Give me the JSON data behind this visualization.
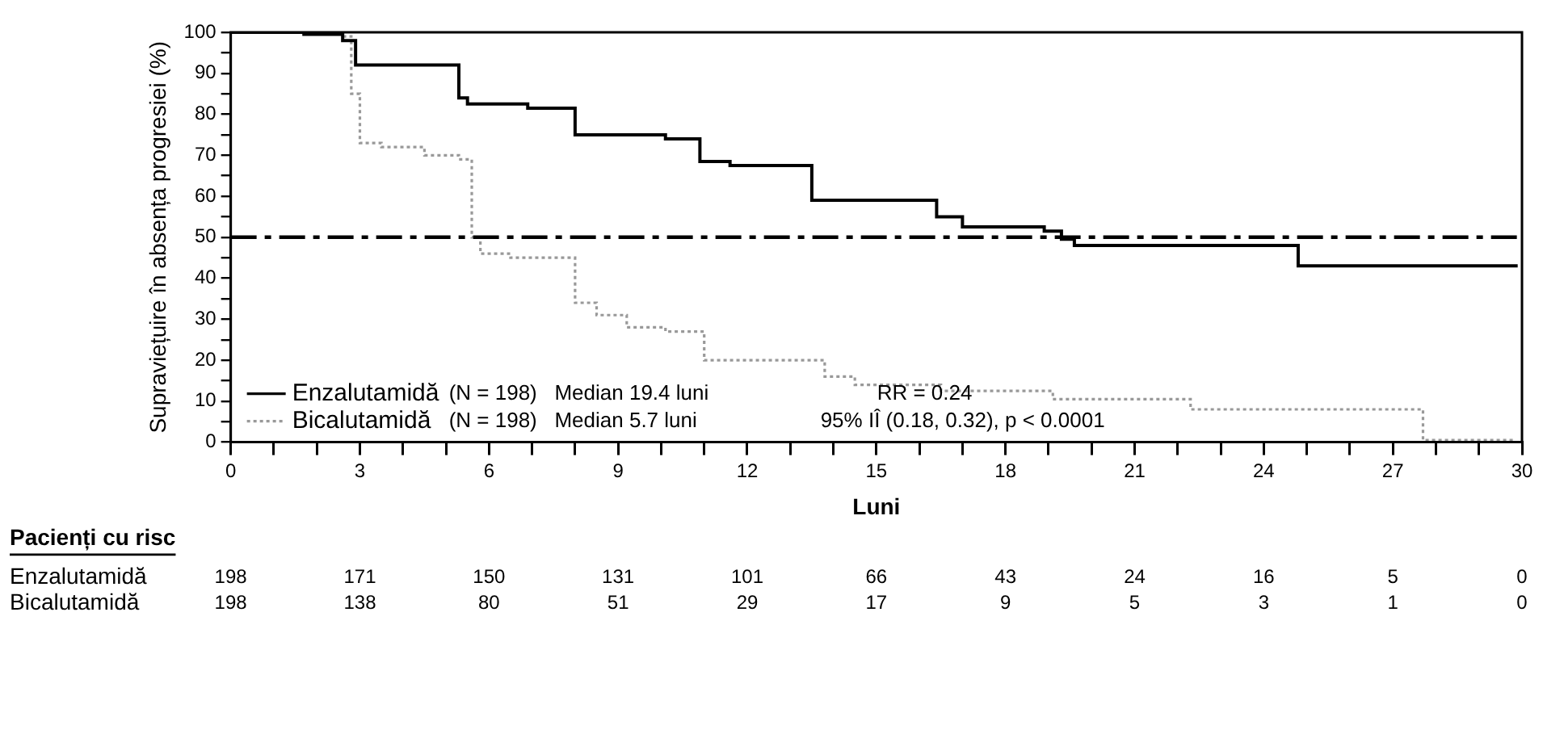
{
  "chart_data": {
    "type": "step",
    "xlabel": "Luni",
    "ylabel": "Supraviețuire în absența progresiei (%)",
    "xlim": [
      0,
      30
    ],
    "ylim": [
      0,
      100
    ],
    "xticks": [
      0,
      {
        "value": 1,
        "label": null
      },
      {
        "value": 2,
        "label": null
      },
      3,
      {
        "value": 4,
        "label": null
      },
      {
        "value": 5,
        "label": null
      },
      6,
      {
        "value": 7,
        "label": null
      },
      {
        "value": 8,
        "label": null
      },
      9,
      {
        "value": 10,
        "label": null
      },
      {
        "value": 11,
        "label": null
      },
      12,
      {
        "value": 13,
        "label": null
      },
      {
        "value": 14,
        "label": null
      },
      15,
      {
        "value": 16,
        "label": null
      },
      {
        "value": 17,
        "label": null
      },
      18,
      {
        "value": 19,
        "label": null
      },
      {
        "value": 20,
        "label": null
      },
      21,
      {
        "value": 22,
        "label": null
      },
      {
        "value": 23,
        "label": null
      },
      24,
      {
        "value": 25,
        "label": null
      },
      {
        "value": 26,
        "label": null
      },
      27,
      {
        "value": 28,
        "label": null
      },
      {
        "value": 29,
        "label": null
      },
      30
    ],
    "yticks": [
      0,
      {
        "value": 5,
        "label": null
      },
      10,
      {
        "value": 15,
        "label": null
      },
      20,
      {
        "value": 25,
        "label": null
      },
      30,
      {
        "value": 35,
        "label": null
      },
      40,
      {
        "value": 45,
        "label": null
      },
      50,
      {
        "value": 55,
        "label": null
      },
      60,
      {
        "value": 65,
        "label": null
      },
      70,
      {
        "value": 75,
        "label": null
      },
      80,
      {
        "value": 85,
        "label": null
      },
      90,
      {
        "value": 95,
        "label": null
      },
      100
    ],
    "grid": false,
    "legend": "bottom left",
    "marker": "none",
    "series": [
      {
        "name": "Enzalutamidă",
        "color": "#000000",
        "line_style": "solid",
        "x": [
          0,
          1.7,
          2.6,
          2.9,
          5.3,
          5.5,
          6.9,
          8.0,
          10.1,
          10.9,
          11.6,
          13.5,
          16.4,
          17.0,
          18.9,
          19.3,
          19.6,
          24.8,
          29.9
        ],
        "values": [
          100,
          99.5,
          98,
          92,
          84,
          82.5,
          81.5,
          75,
          74,
          68.5,
          67.5,
          59,
          55,
          52.5,
          51.5,
          49.5,
          48,
          43,
          43
        ]
      },
      {
        "name": "Bicalutamidă",
        "color": "#999999",
        "line_style": "dotted",
        "x": [
          0,
          2.6,
          2.8,
          3.0,
          3.5,
          4.5,
          5.3,
          5.6,
          5.8,
          6.5,
          8.0,
          8.5,
          9.2,
          10.1,
          11.0,
          13.8,
          14.5,
          16.5,
          19.1,
          22.3,
          27.7,
          29.8
        ],
        "values": [
          100,
          99,
          85,
          73,
          72,
          70,
          69,
          50,
          46,
          45,
          34,
          31,
          28,
          27,
          20,
          16,
          14,
          12.5,
          10.5,
          8,
          0.5,
          0.5
        ]
      }
    ],
    "ref_lines": [
      {
        "axis": "y",
        "value": 50,
        "color": "#000000",
        "line_style": "dashed"
      }
    ],
    "annotations": [
      "(N = 198)   Median 19.4 luni",
      "(N = 198)   Median 5.7 luni",
      "RR = 0.24",
      "95% IÎ (0.18, 0.32), p < 0.0001",
      "Pacienți cu risc",
      "Enzalutamidă",
      "198 171 150 131 101 66 43 24 16 5 0",
      "Bicalutamidă",
      "198 138 80 51 29 17 9 5 3 1 0"
    ]
  }
}
